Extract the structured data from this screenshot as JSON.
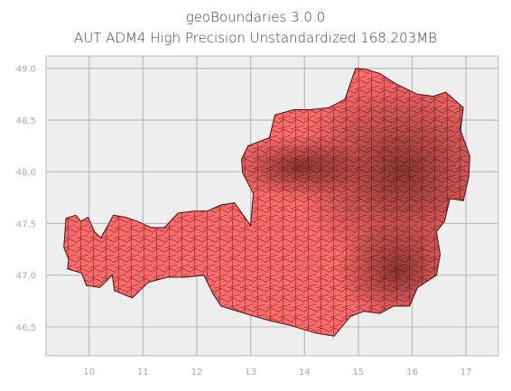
{
  "title_lines": [
    "geoBoundaries 3.0.0",
    "AUT ADM4 High Precision Unstandardized 168.203MB"
  ],
  "axes": {
    "x_ticks": [
      "10",
      "11",
      "12",
      "13",
      "14",
      "15",
      "16",
      "17"
    ],
    "y_ticks": [
      "49.0",
      "48.5",
      "48.0",
      "47.5",
      "47.0",
      "46.5"
    ],
    "xlim": [
      9.2,
      17.6
    ],
    "ylim": [
      46.22,
      49.12
    ],
    "grid": true
  },
  "colors": {
    "plot_background": "#eeeeee",
    "grid": "#bbbbbb",
    "polygon_fill": "#ff6b6b",
    "polygon_edge": "#4a1212",
    "dense_overlay": "#2a0808"
  },
  "map": {
    "country": "AUT",
    "admin_level": "ADM4",
    "outline_lonlat": [
      [
        9.53,
        47.27
      ],
      [
        9.57,
        47.55
      ],
      [
        9.75,
        47.58
      ],
      [
        9.85,
        47.52
      ],
      [
        9.98,
        47.56
      ],
      [
        10.1,
        47.42
      ],
      [
        10.22,
        47.36
      ],
      [
        10.45,
        47.58
      ],
      [
        10.68,
        47.56
      ],
      [
        10.9,
        47.52
      ],
      [
        11.15,
        47.46
      ],
      [
        11.4,
        47.46
      ],
      [
        11.65,
        47.6
      ],
      [
        11.95,
        47.62
      ],
      [
        12.2,
        47.62
      ],
      [
        12.45,
        47.68
      ],
      [
        12.7,
        47.7
      ],
      [
        13.0,
        47.48
      ],
      [
        13.05,
        47.79
      ],
      [
        12.85,
        47.99
      ],
      [
        12.83,
        48.12
      ],
      [
        12.95,
        48.25
      ],
      [
        13.35,
        48.33
      ],
      [
        13.45,
        48.55
      ],
      [
        13.8,
        48.6
      ],
      [
        14.1,
        48.6
      ],
      [
        14.45,
        48.62
      ],
      [
        14.75,
        48.7
      ],
      [
        14.95,
        49.0
      ],
      [
        15.15,
        48.99
      ],
      [
        15.4,
        48.95
      ],
      [
        15.7,
        48.85
      ],
      [
        16.1,
        48.75
      ],
      [
        16.4,
        48.73
      ],
      [
        16.62,
        48.77
      ],
      [
        16.95,
        48.62
      ],
      [
        16.9,
        48.4
      ],
      [
        17.07,
        48.15
      ],
      [
        17.05,
        47.95
      ],
      [
        16.95,
        47.72
      ],
      [
        16.7,
        47.74
      ],
      [
        16.6,
        47.52
      ],
      [
        16.45,
        47.42
      ],
      [
        16.52,
        47.2
      ],
      [
        16.45,
        47.0
      ],
      [
        16.1,
        46.88
      ],
      [
        15.95,
        46.7
      ],
      [
        15.65,
        46.7
      ],
      [
        15.4,
        46.63
      ],
      [
        15.1,
        46.65
      ],
      [
        14.85,
        46.6
      ],
      [
        14.55,
        46.41
      ],
      [
        14.2,
        46.44
      ],
      [
        13.7,
        46.52
      ],
      [
        13.35,
        46.56
      ],
      [
        12.95,
        46.62
      ],
      [
        12.45,
        46.7
      ],
      [
        12.3,
        46.82
      ],
      [
        12.13,
        47.0
      ],
      [
        11.8,
        46.98
      ],
      [
        11.45,
        46.98
      ],
      [
        11.1,
        46.93
      ],
      [
        10.8,
        46.78
      ],
      [
        10.47,
        46.85
      ],
      [
        10.43,
        47.0
      ],
      [
        10.2,
        46.88
      ],
      [
        9.95,
        46.9
      ],
      [
        9.86,
        47.02
      ],
      [
        9.6,
        47.06
      ],
      [
        9.62,
        47.15
      ],
      [
        9.53,
        47.27
      ]
    ]
  }
}
